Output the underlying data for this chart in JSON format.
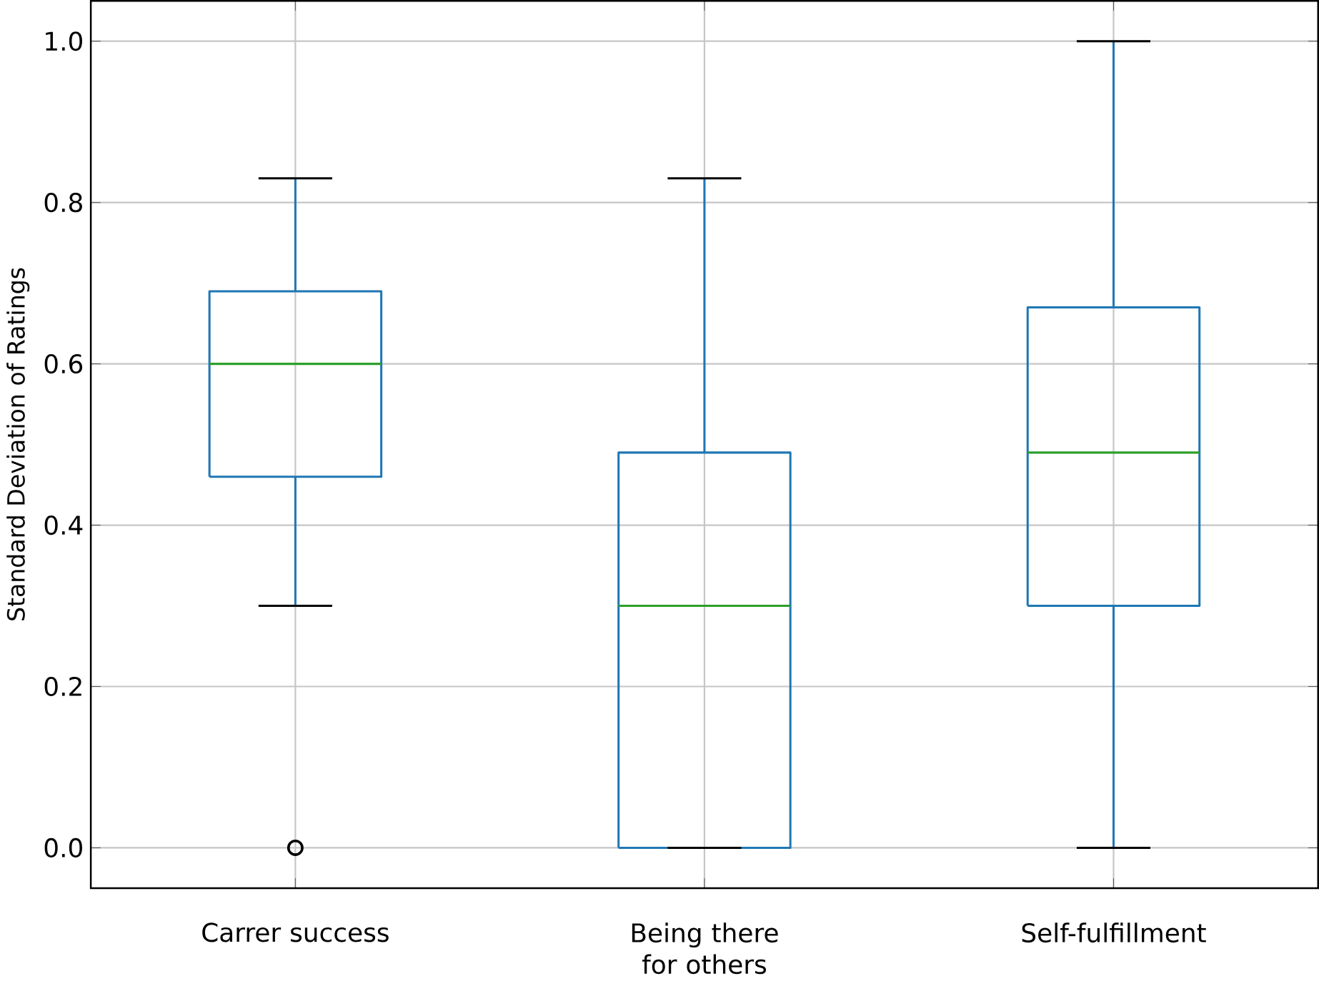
{
  "chart_data": {
    "type": "box",
    "ylabel": "Standard Deviation of Ratings",
    "categories": [
      "Carrer success",
      "Being there for others",
      "Self-fulfillment"
    ],
    "color": "#1f77b4",
    "boxes": [
      {
        "low": 0.3,
        "q1": 0.46,
        "median": 0.6,
        "q3": 0.69,
        "high": 0.83,
        "outliers": [
          0
        ]
      },
      {
        "low": 0,
        "q1": 0,
        "median": 0.3,
        "q3": 0.49,
        "high": 0.83
      },
      {
        "low": 0,
        "q1": 0.3,
        "median": 0.49,
        "q3": 0.67,
        "high": 1.0
      }
    ],
    "ylim": [
      -0.05,
      1.05
    ],
    "yticks": [
      {
        "value": 0,
        "label": "0.0"
      },
      {
        "value": 0.2,
        "label": "0.2"
      },
      {
        "value": 0.4,
        "label": "0.4"
      },
      {
        "value": 0.6,
        "label": "0.6"
      },
      {
        "value": 0.8,
        "label": "0.8"
      },
      {
        "value": 1,
        "label": "1.0"
      }
    ],
    "grid": true
  }
}
